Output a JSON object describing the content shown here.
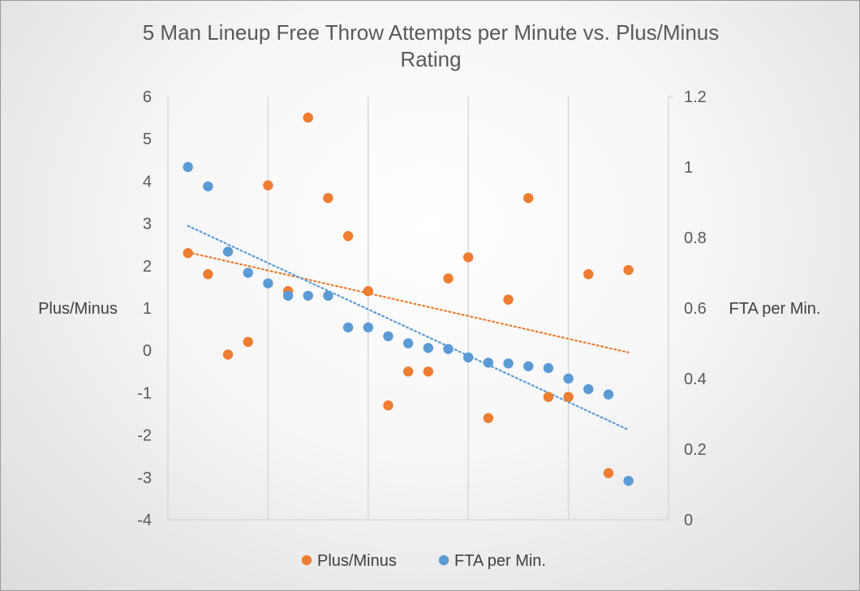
{
  "chart_data": {
    "type": "scatter",
    "title": "5 Man Lineup Free Throw Attempts per Minute vs. Plus/Minus Rating",
    "title_lines": [
      "5 Man Lineup Free Throw Attempts per Minute vs. Plus/Minus",
      "Rating"
    ],
    "ylabel": "Plus/Minus",
    "y2label": "FTA per Min.",
    "ylim": [
      -4,
      6
    ],
    "y2lim": [
      0,
      1.2
    ],
    "yticks": [
      "6",
      "5",
      "4",
      "3",
      "2",
      "1",
      "0",
      "-1",
      "-2",
      "-3",
      "-4"
    ],
    "y2ticks": [
      "1.2",
      "1",
      "0.8",
      "0.6",
      "0.4",
      "0.2",
      "0"
    ],
    "x": [
      1,
      2,
      3,
      4,
      5,
      6,
      7,
      8,
      9,
      10,
      11,
      12,
      13,
      14,
      15,
      16,
      17,
      18,
      19,
      20,
      21,
      22,
      23
    ],
    "xlim": [
      0,
      25
    ],
    "grid": true,
    "legend_position": "bottom",
    "series": [
      {
        "name": "Plus/Minus",
        "axis": "left",
        "color": "#ED7D31",
        "values": [
          2.3,
          1.8,
          -0.1,
          0.2,
          3.9,
          1.4,
          5.5,
          3.6,
          2.7,
          1.4,
          -1.3,
          -0.5,
          -0.5,
          1.7,
          2.2,
          -1.6,
          1.2,
          3.6,
          -1.1,
          -1.1,
          1.8,
          -2.9,
          1.9
        ],
        "trendline": {
          "type": "linear",
          "style": "dotted"
        }
      },
      {
        "name": "FTA per Min.",
        "axis": "right",
        "color": "#5B9BD5",
        "values": [
          1.0,
          0.945,
          0.76,
          0.7,
          0.67,
          0.635,
          0.635,
          0.635,
          0.545,
          0.545,
          0.52,
          0.5,
          0.487,
          0.484,
          0.46,
          0.445,
          0.443,
          0.435,
          0.43,
          0.4,
          0.37,
          0.355,
          0.11
        ],
        "trendline": {
          "type": "linear",
          "style": "dotted"
        }
      }
    ]
  }
}
